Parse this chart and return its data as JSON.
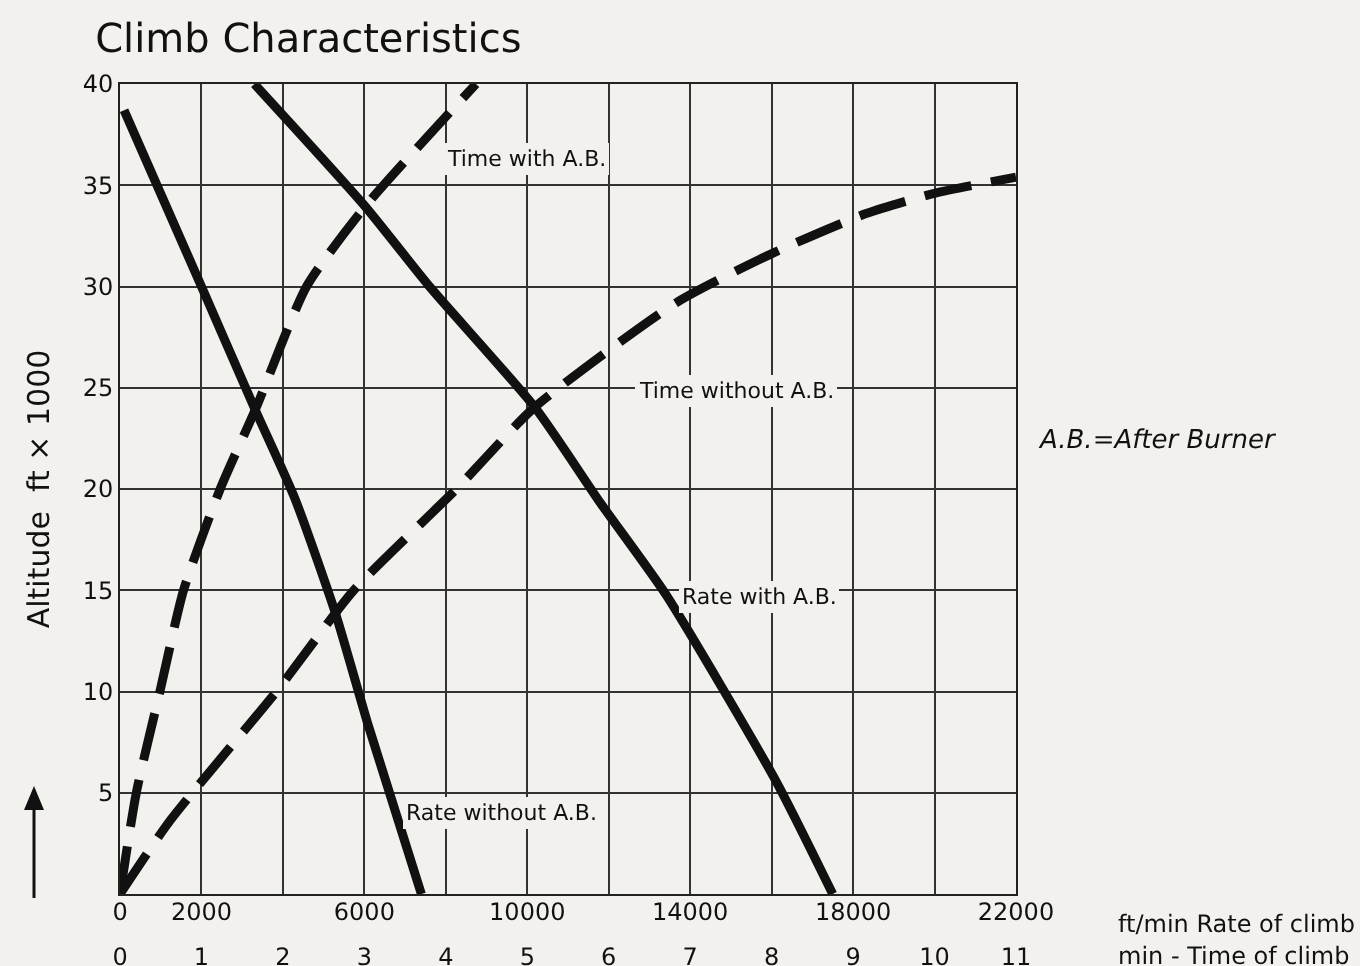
{
  "chart_data": {
    "type": "line",
    "title": "Climb Characteristics",
    "xlabel": "min - Time of climb",
    "x2label": "ft/min Rate of climb",
    "ylabel": "Altitude  ft × 1000",
    "xlim": [
      0,
      11
    ],
    "xticks": [
      0,
      1,
      2,
      3,
      4,
      5,
      6,
      7,
      8,
      9,
      10,
      11
    ],
    "x2lim": [
      0,
      22000
    ],
    "x2ticks": [
      0,
      2000,
      6000,
      10000,
      14000,
      18000,
      22000
    ],
    "ylim": [
      0,
      40
    ],
    "yticks": [
      {
        "value": 0,
        "label": null
      },
      5,
      10,
      15,
      20,
      25,
      30,
      35,
      40
    ],
    "grid": true,
    "legend": false,
    "marker": "none",
    "series": [
      {
        "name": "Time with A.B.",
        "color": "#111111",
        "line_style": "dashed",
        "x": [
          0,
          0.2,
          0.49,
          0.78,
          1.23,
          1.67,
          2.29,
          3.02,
          4.37
        ],
        "values": [
          0,
          5,
          10,
          15,
          20,
          24,
          30,
          34,
          40
        ]
      },
      {
        "name": "Time without A.B.",
        "color": "#111111",
        "line_style": "dashed",
        "x": [
          0,
          0.61,
          1.92,
          2.87,
          4.13,
          5.08,
          6.83,
          7.99,
          9.16,
          10.0,
          11.0
        ],
        "values": [
          0,
          3.6,
          10,
          15,
          20,
          24,
          29.2,
          31.6,
          33.6,
          34.6,
          35.4
        ]
      },
      {
        "name": "Rate with A.B.",
        "color": "#111111",
        "line_style": "solid",
        "axis": "x2",
        "x": [
          3300,
          6000,
          7600,
          10200,
          11800,
          13400,
          16100,
          17500
        ],
        "values": [
          40,
          34,
          30,
          24,
          19.3,
          14.8,
          5.6,
          0
        ]
      },
      {
        "name": "Rate without A.B.",
        "color": "#111111",
        "line_style": "solid",
        "axis": "x2",
        "x": [
          100,
          2000,
          3300,
          4300,
          5300,
          6100,
          7400
        ],
        "values": [
          38.7,
          30,
          24,
          19.5,
          13.8,
          8.3,
          0
        ]
      }
    ],
    "annotations": [
      "A.B.=After Burner"
    ]
  }
}
